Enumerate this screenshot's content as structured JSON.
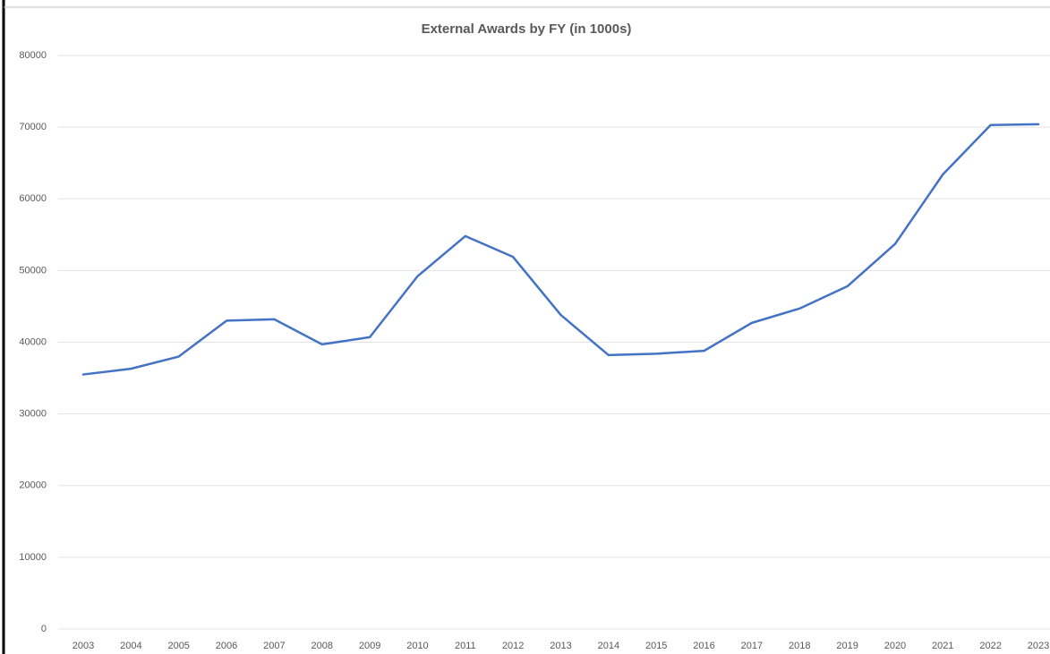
{
  "chart_data": {
    "type": "line",
    "title": "External Awards by FY (in 1000s)",
    "categories": [
      "2003",
      "2004",
      "2005",
      "2006",
      "2007",
      "2008",
      "2009",
      "2010",
      "2011",
      "2012",
      "2013",
      "2014",
      "2015",
      "2016",
      "2017",
      "2018",
      "2019",
      "2020",
      "2021",
      "2022",
      "2023"
    ],
    "series": [
      {
        "name": "External Awards",
        "color": "#4472c4",
        "values": [
          35500,
          36300,
          38000,
          43000,
          43200,
          39700,
          40700,
          49200,
          54800,
          51900,
          43800,
          38200,
          38400,
          38800,
          42700,
          44700,
          47800,
          53700,
          63400,
          70300,
          70400
        ]
      }
    ],
    "ylim": [
      0,
      80000
    ],
    "yticks": [
      0,
      10000,
      20000,
      30000,
      40000,
      50000,
      60000,
      70000,
      80000
    ],
    "grid": true
  }
}
